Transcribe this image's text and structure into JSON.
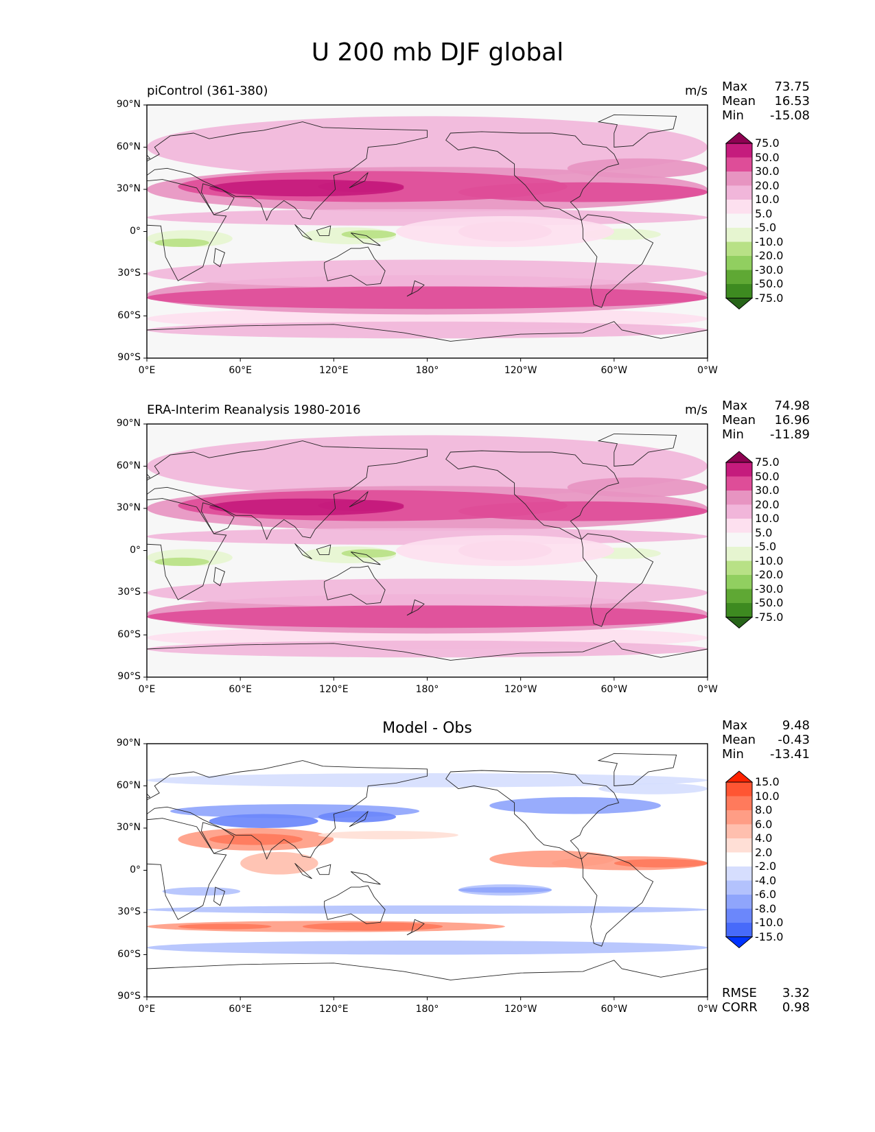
{
  "title": "U 200 mb DJF global",
  "lat_ticks": [
    "90°N",
    "60°N",
    "30°N",
    "0°",
    "30°S",
    "60°S",
    "90°S"
  ],
  "lon_ticks": [
    "0°E",
    "60°E",
    "120°E",
    "180°",
    "120°W",
    "60°W",
    "0°W"
  ],
  "panels": [
    {
      "id": "model",
      "left_label": "piControl (361-380)",
      "center_label": "",
      "units": "m/s",
      "stats": [
        {
          "label": "Max",
          "value": "73.75"
        },
        {
          "label": "Mean",
          "value": "16.53"
        },
        {
          "label": "Min",
          "value": "-15.08"
        }
      ],
      "metrics": [],
      "colorbar": {
        "labels": [
          "75.0",
          "50.0",
          "30.0",
          "20.0",
          "10.0",
          "5.0",
          "-5.0",
          "-10.0",
          "-20.0",
          "-30.0",
          "-50.0",
          "-75.0"
        ],
        "colors": [
          "#8e0152",
          "#c51b7d",
          "#de4d98",
          "#e794c1",
          "#f1b6da",
          "#fde0ef",
          "#f7f7f7",
          "#e6f5d0",
          "#b8e186",
          "#91cf60",
          "#5fa834",
          "#3d8a20",
          "#276419"
        ]
      }
    },
    {
      "id": "obs",
      "left_label": "ERA-Interim Reanalysis 1980-2016",
      "center_label": "",
      "units": "m/s",
      "stats": [
        {
          "label": "Max",
          "value": "74.98"
        },
        {
          "label": "Mean",
          "value": "16.96"
        },
        {
          "label": "Min",
          "value": "-11.89"
        }
      ],
      "metrics": [],
      "colorbar": {
        "labels": [
          "75.0",
          "50.0",
          "30.0",
          "20.0",
          "10.0",
          "5.0",
          "-5.0",
          "-10.0",
          "-20.0",
          "-30.0",
          "-50.0",
          "-75.0"
        ],
        "colors": [
          "#8e0152",
          "#c51b7d",
          "#de4d98",
          "#e794c1",
          "#f1b6da",
          "#fde0ef",
          "#f7f7f7",
          "#e6f5d0",
          "#b8e186",
          "#91cf60",
          "#5fa834",
          "#3d8a20",
          "#276419"
        ]
      }
    },
    {
      "id": "diff",
      "left_label": "",
      "center_label": "Model - Obs",
      "units": "",
      "stats": [
        {
          "label": "Max",
          "value": "9.48"
        },
        {
          "label": "Mean",
          "value": "-0.43"
        },
        {
          "label": "Min",
          "value": "-13.41"
        }
      ],
      "metrics": [
        {
          "label": "RMSE",
          "value": "3.32"
        },
        {
          "label": "CORR",
          "value": "0.98"
        }
      ],
      "colorbar": {
        "labels": [
          "15.0",
          "10.0",
          "8.0",
          "6.0",
          "4.0",
          "2.0",
          "-2.0",
          "-4.0",
          "-6.0",
          "-8.0",
          "-10.0",
          "-15.0"
        ],
        "colors": [
          "#ff2200",
          "#ff5533",
          "#ff7a5c",
          "#ff9d85",
          "#ffbfae",
          "#ffdfd6",
          "#ffffff",
          "#d6defe",
          "#b3c2fd",
          "#8fa5fc",
          "#6b87fb",
          "#476afa",
          "#0033ff"
        ]
      }
    }
  ],
  "chart_data": [
    {
      "type": "heatmap",
      "title": "piControl (361-380)",
      "units": "m/s",
      "xlabel": "",
      "ylabel": "",
      "xlim": [
        0,
        360
      ],
      "ylim": [
        -90,
        90
      ],
      "field_summary": "zonal wind at 200 mb, DJF; westerly jets near 30°N (Asia/Pacific, Atlantic) and 45-50°S; weak easterlies over equatorial Africa/Maritime Continent",
      "max": 73.75,
      "mean": 16.53,
      "min": -15.08,
      "levels": [
        -75,
        -50,
        -30,
        -20,
        -10,
        -5,
        5,
        10,
        20,
        30,
        50,
        75
      ]
    },
    {
      "type": "heatmap",
      "title": "ERA-Interim Reanalysis 1980-2016",
      "units": "m/s",
      "xlim": [
        0,
        360
      ],
      "ylim": [
        -90,
        90
      ],
      "max": 74.98,
      "mean": 16.96,
      "min": -11.89,
      "levels": [
        -75,
        -50,
        -30,
        -20,
        -10,
        -5,
        5,
        10,
        20,
        30,
        50,
        75
      ]
    },
    {
      "type": "heatmap",
      "title": "Model - Obs",
      "xlim": [
        0,
        360
      ],
      "ylim": [
        -90,
        90
      ],
      "max": 9.48,
      "mean": -0.43,
      "min": -13.41,
      "rmse": 3.32,
      "corr": 0.98,
      "levels": [
        -15,
        -10,
        -8,
        -6,
        -4,
        -2,
        2,
        4,
        6,
        8,
        10,
        15
      ]
    }
  ]
}
